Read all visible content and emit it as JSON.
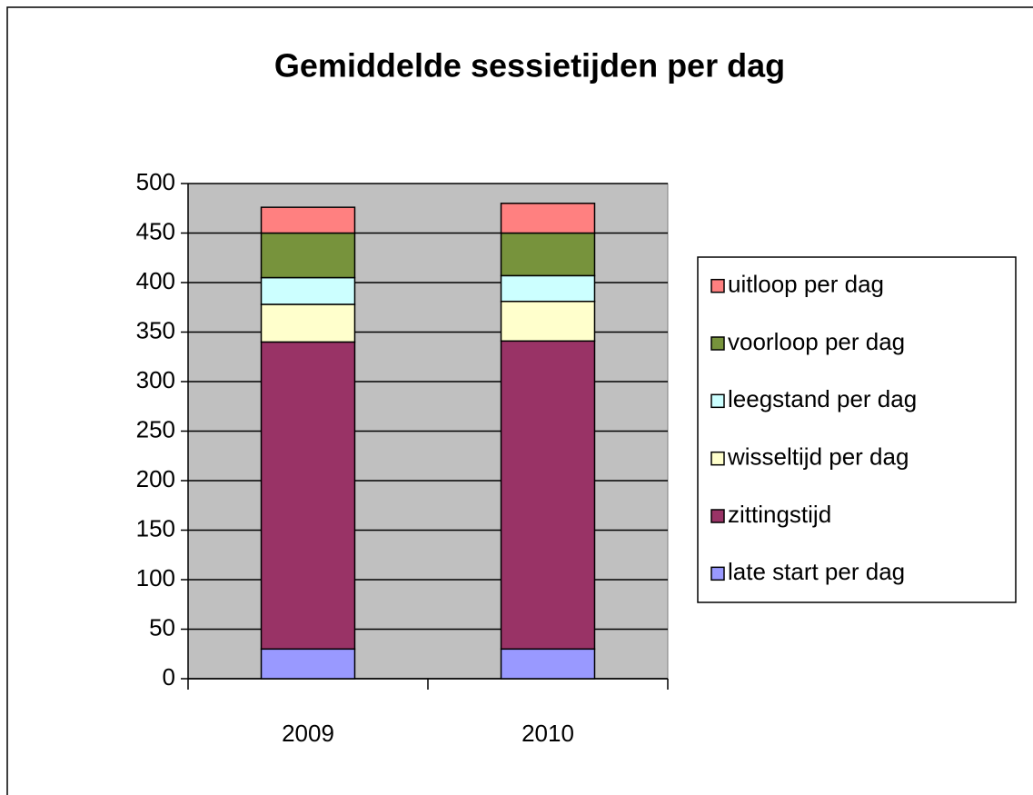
{
  "chart_data": {
    "type": "stacked-bar",
    "title": "Gemiddelde sessietijden per dag",
    "categories": [
      "2009",
      "2010"
    ],
    "series": [
      {
        "name": "late start per dag",
        "color": "#9999ff",
        "values": [
          30,
          30
        ]
      },
      {
        "name": "zittingstijd",
        "color": "#993366",
        "values": [
          310,
          311
        ]
      },
      {
        "name": "wisseltijd per dag",
        "color": "#ffffcc",
        "values": [
          38,
          40
        ]
      },
      {
        "name": "leegstand per dag",
        "color": "#ccffff",
        "values": [
          27,
          26
        ]
      },
      {
        "name": "voorloop per dag",
        "color": "#77933c",
        "values": [
          45,
          43
        ]
      },
      {
        "name": "uitloop per dag",
        "color": "#ff8080",
        "values": [
          26,
          30
        ]
      }
    ],
    "ylim": [
      0,
      500
    ],
    "yticks": [
      0,
      50,
      100,
      150,
      200,
      250,
      300,
      350,
      400,
      450,
      500
    ],
    "grid": true,
    "legend": "right"
  }
}
